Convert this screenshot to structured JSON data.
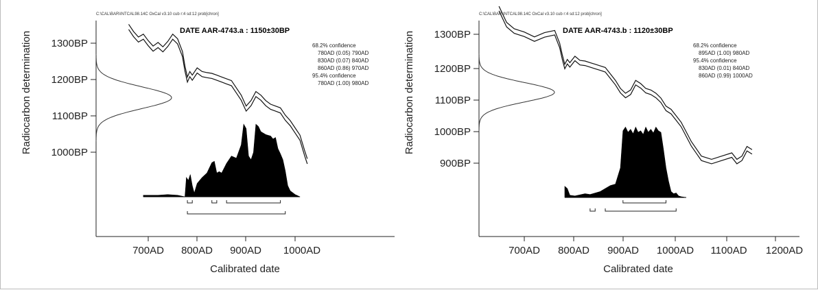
{
  "chart_data": [
    {
      "type": "area",
      "file_path": "C:\\CAL\\BAR\\INTCAL98.14C  OxCal v3.10 cub r:4 sd:12 prob[chron]",
      "title": "DATE AAR-4743.a : 1150±30BP",
      "xlabel": "Calibrated date",
      "ylabel": "Radiocarbon determination",
      "xlim": [
        610,
        1060
      ],
      "ylim": [
        885,
        1360
      ],
      "x_ticks": [
        "700AD",
        "800AD",
        "900AD",
        "1000AD"
      ],
      "y_ticks": [
        "1300BP",
        "1200BP",
        "1100BP",
        "1000BP"
      ],
      "confidence_text": [
        "68.2% confidence",
        "780AD (0.05) 790AD",
        "830AD (0.07) 840AD",
        "860AD (0.86) 970AD",
        "95.4% confidence",
        "780AD (1.00) 980AD"
      ],
      "measurement": {
        "mean": 1150,
        "sd": 30
      },
      "calibration_curve": {
        "x": [
          660,
          670,
          680,
          690,
          700,
          710,
          720,
          730,
          740,
          750,
          760,
          770,
          775,
          780,
          785,
          790,
          800,
          810,
          820,
          830,
          840,
          850,
          860,
          870,
          880,
          890,
          900,
          910,
          920,
          930,
          940,
          950,
          960,
          970,
          980,
          990,
          1000,
          1010,
          1020,
          1025
        ],
        "y": [
          1345,
          1325,
          1310,
          1318,
          1300,
          1285,
          1295,
          1283,
          1298,
          1318,
          1305,
          1270,
          1230,
          1200,
          1215,
          1205,
          1225,
          1215,
          1212,
          1210,
          1205,
          1200,
          1195,
          1190,
          1170,
          1150,
          1120,
          1135,
          1160,
          1150,
          1135,
          1125,
          1120,
          1115,
          1095,
          1080,
          1060,
          1040,
          995,
          975
        ],
        "halfwidth": 7
      },
      "probability": {
        "x": [
          690,
          700,
          720,
          740,
          760,
          775,
          778,
          782,
          786,
          790,
          794,
          800,
          810,
          820,
          830,
          835,
          840,
          845,
          850,
          860,
          870,
          880,
          890,
          895,
          900,
          905,
          910,
          915,
          920,
          925,
          930,
          935,
          940,
          945,
          950,
          955,
          960,
          965,
          970,
          975,
          980,
          985,
          990,
          1000,
          1010
        ],
        "p": [
          0.02,
          0.02,
          0.02,
          0.03,
          0.02,
          0.0,
          0.26,
          0.22,
          0.3,
          0.15,
          0.05,
          0.18,
          0.26,
          0.32,
          0.46,
          0.48,
          0.32,
          0.34,
          0.32,
          0.45,
          0.55,
          0.52,
          0.7,
          0.98,
          0.92,
          0.55,
          0.5,
          0.6,
          0.98,
          0.95,
          0.88,
          0.86,
          0.84,
          0.83,
          0.82,
          0.78,
          0.8,
          0.65,
          0.58,
          0.5,
          0.35,
          0.15,
          0.08,
          0.03,
          0.0
        ]
      },
      "ranges_68": [
        [
          780,
          790
        ],
        [
          830,
          840
        ],
        [
          860,
          970
        ]
      ],
      "ranges_95": [
        [
          780,
          980
        ]
      ]
    },
    {
      "type": "area",
      "file_path": "C:\\CAL\\BAR\\INTCAL98.14C  OxCal v3.10 cub r:4 sd:12 prob[chron]",
      "title": "DATE AAR-4743.b : 1120±30BP",
      "xlabel": "Calibrated date",
      "ylabel": "Radiocarbon determination",
      "xlim": [
        610,
        1200
      ],
      "ylim": [
        820,
        1340
      ],
      "x_ticks": [
        "700AD",
        "800AD",
        "900AD",
        "1000AD",
        "1100AD",
        "1200AD"
      ],
      "y_ticks": [
        "1300BP",
        "1200BP",
        "1100BP",
        "1000BP",
        "900BP"
      ],
      "confidence_text": [
        "68.2% confidence",
        "895AD (1.00) 980AD",
        "95.4% confidence",
        "830AD (0.01) 840AD",
        "860AD (0.99) 1000AD"
      ],
      "measurement": {
        "mean": 1120,
        "sd": 30
      },
      "calibration_curve": {
        "x": [
          650,
          665,
          680,
          700,
          720,
          740,
          760,
          770,
          775,
          780,
          785,
          790,
          800,
          810,
          820,
          830,
          840,
          850,
          860,
          870,
          880,
          890,
          900,
          910,
          920,
          930,
          940,
          950,
          960,
          970,
          980,
          990,
          1000,
          1010,
          1020,
          1030,
          1050,
          1070,
          1090,
          1110,
          1120,
          1130,
          1140,
          1150
        ],
        "y": [
          1380,
          1330,
          1310,
          1300,
          1285,
          1298,
          1305,
          1265,
          1230,
          1200,
          1215,
          1205,
          1225,
          1212,
          1210,
          1205,
          1200,
          1195,
          1190,
          1170,
          1150,
          1125,
          1110,
          1120,
          1150,
          1140,
          1125,
          1120,
          1110,
          1095,
          1070,
          1060,
          1040,
          1020,
          990,
          960,
          915,
          905,
          915,
          925,
          905,
          915,
          945,
          935
        ],
        "halfwidth": 7
      },
      "probability": {
        "x": [
          780,
          785,
          790,
          800,
          820,
          830,
          840,
          850,
          860,
          870,
          880,
          890,
          895,
          900,
          905,
          910,
          915,
          920,
          925,
          930,
          935,
          940,
          945,
          950,
          955,
          960,
          965,
          970,
          975,
          980,
          985,
          990,
          995,
          1000,
          1005,
          1010,
          1020
        ],
        "p": [
          0.15,
          0.12,
          0.03,
          0.02,
          0.05,
          0.04,
          0.06,
          0.08,
          0.12,
          0.16,
          0.18,
          0.4,
          0.9,
          0.95,
          0.88,
          0.92,
          0.86,
          0.95,
          0.88,
          0.9,
          0.85,
          0.95,
          0.88,
          0.92,
          0.87,
          0.95,
          0.9,
          0.88,
          0.65,
          0.4,
          0.22,
          0.08,
          0.05,
          0.06,
          0.02,
          0.01,
          0.0
        ]
      },
      "ranges_68": [
        [
          895,
          980
        ]
      ],
      "ranges_95": [
        [
          830,
          840
        ],
        [
          860,
          1000
        ]
      ]
    }
  ]
}
